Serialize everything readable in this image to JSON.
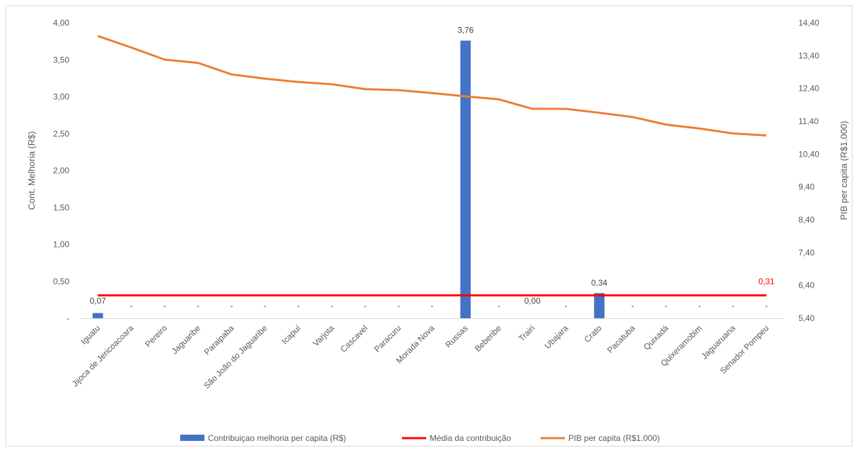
{
  "chart_data": {
    "type": "bar",
    "categories": [
      "Iguatu",
      "Jijoca de Jericoacoara",
      "Pereiro",
      "Jaguaribe",
      "Paraipaba",
      "São João do Jaguaribe",
      "Icapuí",
      "Varjota",
      "Cascavel",
      "Paracuru",
      "Morada Nova",
      "Russas",
      "Beberibe",
      "Trairi",
      "Ubajara",
      "Crato",
      "Pacatuba",
      "Quixadá",
      "Quixeramobim",
      "Jaguaruana",
      "Senador Pompeu"
    ],
    "series": [
      {
        "name": "Contribuiçao melhoria per capita (R$)",
        "type": "bar",
        "axis": "left",
        "color": "#4472c4",
        "values": [
          0.07,
          0,
          0,
          0,
          0,
          0,
          0,
          0,
          0,
          0,
          0,
          3.76,
          0,
          0.0,
          0,
          0.34,
          0,
          0,
          0,
          0,
          0
        ],
        "labels": [
          "0,07",
          "-",
          "-",
          "-",
          "-",
          "-",
          "-",
          "-",
          "-",
          "-",
          "-",
          "3,76",
          "-",
          "0,00",
          "-",
          "0,34",
          "-",
          "-",
          "-",
          "-",
          "-"
        ]
      },
      {
        "name": "Média da contribuição",
        "type": "line",
        "axis": "left",
        "color": "#ff0000",
        "values": [
          0.31,
          0.31,
          0.31,
          0.31,
          0.31,
          0.31,
          0.31,
          0.31,
          0.31,
          0.31,
          0.31,
          0.31,
          0.31,
          0.31,
          0.31,
          0.31,
          0.31,
          0.31,
          0.31,
          0.31,
          0.31
        ],
        "end_label": "0,31"
      },
      {
        "name": "PIB per capita (R$1.000)",
        "type": "line",
        "axis": "right",
        "color": "#ed7d31",
        "values": [
          14.0,
          13.65,
          13.28,
          13.18,
          12.83,
          12.7,
          12.6,
          12.53,
          12.38,
          12.35,
          12.26,
          12.16,
          12.07,
          11.78,
          11.78,
          11.66,
          11.53,
          11.3,
          11.18,
          11.03,
          10.97
        ]
      }
    ],
    "y_left": {
      "label": "Cont. Melhoria  (R$)",
      "ylim": [
        0,
        4.0
      ],
      "ticks": [
        0,
        0.5,
        1.0,
        1.5,
        2.0,
        2.5,
        3.0,
        3.5,
        4.0
      ],
      "tick_labels": [
        "-",
        "0,50",
        "1,00",
        "1,50",
        "2,00",
        "2,50",
        "3,00",
        "3,50",
        "4,00"
      ]
    },
    "y_right": {
      "label": "PIB per capita (R$1.000)",
      "ylim": [
        5.4,
        14.4
      ],
      "ticks": [
        5.4,
        6.4,
        7.4,
        8.4,
        9.4,
        10.4,
        11.4,
        12.4,
        13.4,
        14.4
      ],
      "tick_labels": [
        "5,40",
        "6,40",
        "7,40",
        "8,40",
        "9,40",
        "10,40",
        "11,40",
        "12,40",
        "13,40",
        "14,40"
      ]
    },
    "grid": false,
    "legend_position": "bottom",
    "end_label_color": "#ff0000"
  }
}
